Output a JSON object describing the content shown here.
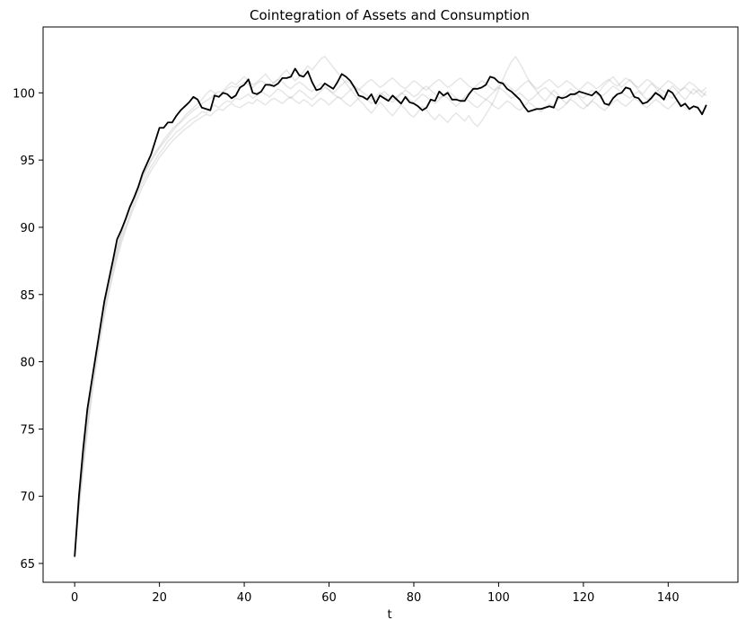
{
  "chart_data": {
    "type": "line",
    "title": "Cointegration of Assets and Consumption",
    "xlabel": "t",
    "x": [
      0,
      1,
      2,
      3,
      4,
      5,
      6,
      7,
      8,
      9,
      10,
      11,
      12,
      13,
      14,
      15,
      16,
      17,
      18,
      19,
      20,
      21,
      22,
      23,
      24,
      25,
      26,
      27,
      28,
      29,
      30,
      31,
      32,
      33,
      34,
      35,
      36,
      37,
      38,
      39,
      40,
      41,
      42,
      43,
      44,
      45,
      46,
      47,
      48,
      49,
      50,
      51,
      52,
      53,
      54,
      55,
      56,
      57,
      58,
      59,
      60,
      61,
      62,
      63,
      64,
      65,
      66,
      67,
      68,
      69,
      70,
      71,
      72,
      73,
      74,
      75,
      76,
      77,
      78,
      79,
      80,
      81,
      82,
      83,
      84,
      85,
      86,
      87,
      88,
      89,
      90,
      91,
      92,
      93,
      94,
      95,
      96,
      97,
      98,
      99,
      100,
      101,
      102,
      103,
      104,
      105,
      106,
      107,
      108,
      109,
      110,
      111,
      112,
      113,
      114,
      115,
      116,
      117,
      118,
      119,
      120,
      121,
      122,
      123,
      124,
      125,
      126,
      127,
      128,
      129,
      130,
      131,
      132,
      133,
      134,
      135,
      136,
      137,
      138,
      139,
      140,
      141,
      142,
      143,
      144,
      145,
      146,
      147,
      148,
      149
    ],
    "xlim": [
      -7.45,
      156.45
    ],
    "xticks": [
      0,
      20,
      40,
      60,
      80,
      100,
      120,
      140
    ],
    "ylim": [
      63.6,
      104.9
    ],
    "yticks": [
      65,
      70,
      75,
      80,
      85,
      90,
      95,
      100
    ],
    "series": [
      {
        "color": "#808080",
        "alpha": 0.2,
        "values": [
          65.6,
          69.2,
          72.4,
          75.3,
          77.8,
          80.0,
          82.0,
          83.8,
          85.3,
          86.7,
          88.0,
          89.1,
          90.0,
          90.9,
          91.8,
          92.6,
          93.3,
          93.9,
          94.5,
          95.0,
          95.5,
          95.9,
          96.4,
          96.7,
          97.1,
          97.3,
          97.6,
          97.9,
          98.1,
          98.3,
          98.6,
          98.5,
          98.8,
          99.1,
          98.9,
          99.2,
          99.4,
          99.3,
          99.6,
          99.5,
          99.7,
          99.9,
          99.6,
          99.8,
          100.1,
          99.9,
          99.7,
          100.0,
          100.3,
          100.1,
          99.8,
          99.6,
          99.9,
          100.2,
          100.0,
          99.7,
          99.5,
          99.8,
          100.1,
          100.4,
          100.2,
          99.9,
          99.7,
          99.6,
          99.9,
          100.2,
          100.5,
          100.3,
          100.0,
          99.8,
          99.5,
          99.7,
          100.0,
          99.8,
          99.5,
          99.3,
          99.6,
          99.9,
          100.2,
          100.0,
          99.7,
          99.9,
          100.3,
          100.5,
          100.2,
          99.9,
          99.6,
          99.8,
          100.1,
          99.9,
          99.6,
          99.4,
          99.7,
          100.0,
          100.2,
          99.9,
          99.7,
          99.5,
          99.8,
          100.1,
          100.4,
          100.2,
          99.9,
          99.6,
          99.8,
          100.0,
          99.7,
          99.4,
          99.6,
          99.9,
          100.2,
          100.4,
          100.1,
          99.8,
          99.5,
          99.7,
          100.0,
          100.3,
          100.1,
          99.8,
          99.6,
          99.9,
          100.2,
          100.0,
          99.7,
          99.9,
          100.2,
          100.5,
          100.3,
          100.0,
          99.8,
          99.6,
          99.9,
          100.1,
          99.8,
          99.5,
          99.7,
          100.0,
          100.3,
          100.1,
          99.8,
          99.6,
          99.9,
          100.2,
          100.4,
          100.1,
          99.9,
          100.2,
          100.0,
          99.8
        ]
      },
      {
        "color": "#808080",
        "alpha": 0.2,
        "values": [
          65.4,
          69.8,
          73.1,
          76.0,
          78.5,
          80.7,
          82.6,
          84.3,
          85.9,
          87.2,
          88.5,
          89.6,
          90.6,
          91.5,
          92.3,
          93.1,
          93.8,
          94.4,
          95.0,
          95.6,
          96.0,
          96.5,
          96.9,
          97.3,
          97.6,
          97.9,
          98.3,
          98.6,
          98.9,
          99.2,
          99.5,
          99.9,
          100.2,
          100.0,
          99.7,
          100.1,
          100.5,
          100.8,
          100.6,
          100.9,
          101.2,
          100.9,
          100.6,
          100.8,
          101.1,
          101.4,
          101.0,
          100.7,
          101.0,
          101.4,
          101.7,
          101.3,
          100.9,
          101.2,
          101.6,
          102.0,
          101.7,
          102.1,
          102.5,
          102.7,
          102.3,
          101.9,
          101.5,
          101.1,
          100.7,
          100.3,
          99.9,
          99.5,
          99.2,
          98.8,
          98.5,
          98.9,
          99.3,
          99.0,
          98.6,
          98.3,
          98.7,
          99.1,
          98.8,
          98.4,
          98.2,
          98.6,
          99.0,
          98.7,
          98.3,
          98.0,
          98.4,
          98.1,
          97.8,
          98.2,
          98.5,
          98.2,
          97.9,
          98.3,
          97.8,
          97.5,
          97.9,
          98.4,
          98.9,
          99.5,
          100.2,
          101.0,
          101.7,
          102.3,
          102.7,
          102.2,
          101.6,
          101.0,
          100.5,
          100.1,
          99.7,
          99.4,
          99.8,
          100.2,
          99.9,
          99.5,
          99.2,
          99.6,
          100.0,
          99.7,
          99.3,
          99.0,
          99.4,
          99.8,
          100.2,
          100.6,
          100.9,
          101.2,
          100.8,
          100.4,
          100.7,
          101.0,
          100.6,
          100.2,
          99.9,
          100.3,
          100.7,
          100.4,
          100.0,
          99.7,
          100.1,
          100.5,
          100.2,
          99.8,
          99.5,
          99.9,
          100.3,
          100.0,
          99.7,
          100.1
        ]
      },
      {
        "color": "#808080",
        "alpha": 0.2,
        "values": [
          65.5,
          69.0,
          72.0,
          74.8,
          77.3,
          79.6,
          81.6,
          83.4,
          85.0,
          86.4,
          87.7,
          88.8,
          89.8,
          90.7,
          91.5,
          92.3,
          93.0,
          93.6,
          94.2,
          94.7,
          95.2,
          95.6,
          96.0,
          96.4,
          96.7,
          97.0,
          97.3,
          97.5,
          97.8,
          98.0,
          98.2,
          98.4,
          98.3,
          98.6,
          98.8,
          98.7,
          99.0,
          99.2,
          99.0,
          98.9,
          99.1,
          99.3,
          99.2,
          99.5,
          99.3,
          99.1,
          99.4,
          99.6,
          99.4,
          99.2,
          99.5,
          99.7,
          99.4,
          99.2,
          99.5,
          99.3,
          99.0,
          99.3,
          99.6,
          99.4,
          99.1,
          99.4,
          99.7,
          99.5,
          99.2,
          99.0,
          99.3,
          99.6,
          99.8,
          99.5,
          99.2,
          99.5,
          99.8,
          100.1,
          99.8,
          99.5,
          99.7,
          100.0,
          99.8,
          99.5,
          99.3,
          99.6,
          99.9,
          99.7,
          99.4,
          99.2,
          99.5,
          99.8,
          99.6,
          99.3,
          99.0,
          99.3,
          99.6,
          99.4,
          99.1,
          98.9,
          99.2,
          99.5,
          99.3,
          99.0,
          98.8,
          99.1,
          99.4,
          99.2,
          98.9,
          98.7,
          99.0,
          99.3,
          99.1,
          98.8,
          98.6,
          98.9,
          99.2,
          99.0,
          98.7,
          98.9,
          99.2,
          99.5,
          99.3,
          99.0,
          98.8,
          99.1,
          99.4,
          99.2,
          98.9,
          98.7,
          99.0,
          99.3,
          99.5,
          99.2,
          99.0,
          99.3,
          99.6,
          99.4,
          99.1,
          98.9,
          99.2,
          99.5,
          99.3,
          99.0,
          98.8,
          99.1,
          99.4,
          99.2,
          98.9,
          98.7,
          99.0,
          98.8,
          98.6,
          98.9
        ]
      },
      {
        "color": "#808080",
        "alpha": 0.2,
        "values": [
          65.7,
          69.6,
          72.9,
          75.9,
          78.4,
          80.6,
          82.5,
          84.2,
          85.7,
          87.1,
          88.3,
          89.4,
          90.4,
          91.3,
          92.1,
          92.9,
          93.6,
          94.3,
          94.9,
          95.4,
          95.9,
          96.3,
          96.7,
          97.1,
          97.5,
          97.8,
          98.1,
          98.4,
          98.7,
          98.9,
          99.2,
          99.4,
          99.6,
          99.9,
          100.1,
          100.0,
          100.3,
          100.5,
          100.4,
          100.6,
          100.8,
          100.6,
          100.4,
          100.7,
          100.9,
          100.7,
          100.5,
          100.8,
          101.0,
          100.8,
          100.5,
          100.3,
          100.6,
          100.8,
          100.6,
          100.3,
          100.1,
          100.4,
          100.7,
          100.5,
          100.2,
          100.0,
          100.3,
          100.6,
          100.9,
          100.7,
          100.4,
          100.2,
          100.5,
          100.8,
          101.0,
          100.7,
          100.4,
          100.6,
          100.9,
          101.1,
          100.8,
          100.5,
          100.3,
          100.6,
          100.9,
          100.7,
          100.4,
          100.2,
          100.5,
          100.8,
          101.0,
          100.7,
          100.4,
          100.6,
          100.9,
          101.1,
          100.8,
          100.5,
          100.3,
          100.6,
          100.9,
          100.7,
          100.4,
          100.2,
          100.5,
          100.8,
          100.6,
          100.3,
          100.1,
          100.4,
          100.7,
          100.9,
          100.6,
          100.3,
          100.5,
          100.8,
          101.0,
          100.7,
          100.4,
          100.6,
          100.9,
          100.7,
          100.4,
          100.2,
          100.5,
          100.8,
          100.6,
          100.3,
          100.5,
          100.8,
          101.0,
          100.7,
          100.5,
          100.8,
          101.1,
          100.9,
          100.6,
          100.4,
          100.7,
          101.0,
          100.8,
          100.5,
          100.3,
          100.6,
          100.9,
          100.7,
          100.4,
          100.2,
          100.5,
          100.8,
          100.6,
          100.3,
          100.1,
          100.4
        ]
      },
      {
        "color": "#000000",
        "alpha": 1,
        "values": [
          65.5,
          70.0,
          73.5,
          76.5,
          78.5,
          80.5,
          82.5,
          84.5,
          86.0,
          87.5,
          89.1,
          89.8,
          90.6,
          91.5,
          92.2,
          93.0,
          94.0,
          94.7,
          95.4,
          96.4,
          97.4,
          97.4,
          97.8,
          97.8,
          98.3,
          98.7,
          99.0,
          99.3,
          99.7,
          99.5,
          98.9,
          98.8,
          98.7,
          99.8,
          99.7,
          100.0,
          99.9,
          99.6,
          99.8,
          100.4,
          100.6,
          101.0,
          100.0,
          99.9,
          100.1,
          100.6,
          100.6,
          100.5,
          100.7,
          101.1,
          101.1,
          101.2,
          101.8,
          101.3,
          101.2,
          101.6,
          100.8,
          100.2,
          100.3,
          100.7,
          100.5,
          100.3,
          100.8,
          101.4,
          101.2,
          100.9,
          100.4,
          99.8,
          99.7,
          99.5,
          99.9,
          99.2,
          99.8,
          99.6,
          99.4,
          99.8,
          99.5,
          99.2,
          99.7,
          99.3,
          99.2,
          99.0,
          98.7,
          98.9,
          99.5,
          99.4,
          100.1,
          99.8,
          100.0,
          99.5,
          99.5,
          99.4,
          99.4,
          99.9,
          100.3,
          100.3,
          100.4,
          100.6,
          101.2,
          101.1,
          100.8,
          100.7,
          100.3,
          100.1,
          99.8,
          99.5,
          99.0,
          98.6,
          98.7,
          98.8,
          98.8,
          98.9,
          99.0,
          98.9,
          99.7,
          99.6,
          99.7,
          99.9,
          99.9,
          100.1,
          100.0,
          99.9,
          99.8,
          100.1,
          99.8,
          99.2,
          99.1,
          99.6,
          99.9,
          100.0,
          100.4,
          100.3,
          99.7,
          99.6,
          99.2,
          99.3,
          99.6,
          100.0,
          99.8,
          99.5,
          100.2,
          100.0,
          99.5,
          99.0,
          99.2,
          98.8,
          99.0,
          98.9,
          98.4,
          99.1
        ]
      }
    ]
  }
}
